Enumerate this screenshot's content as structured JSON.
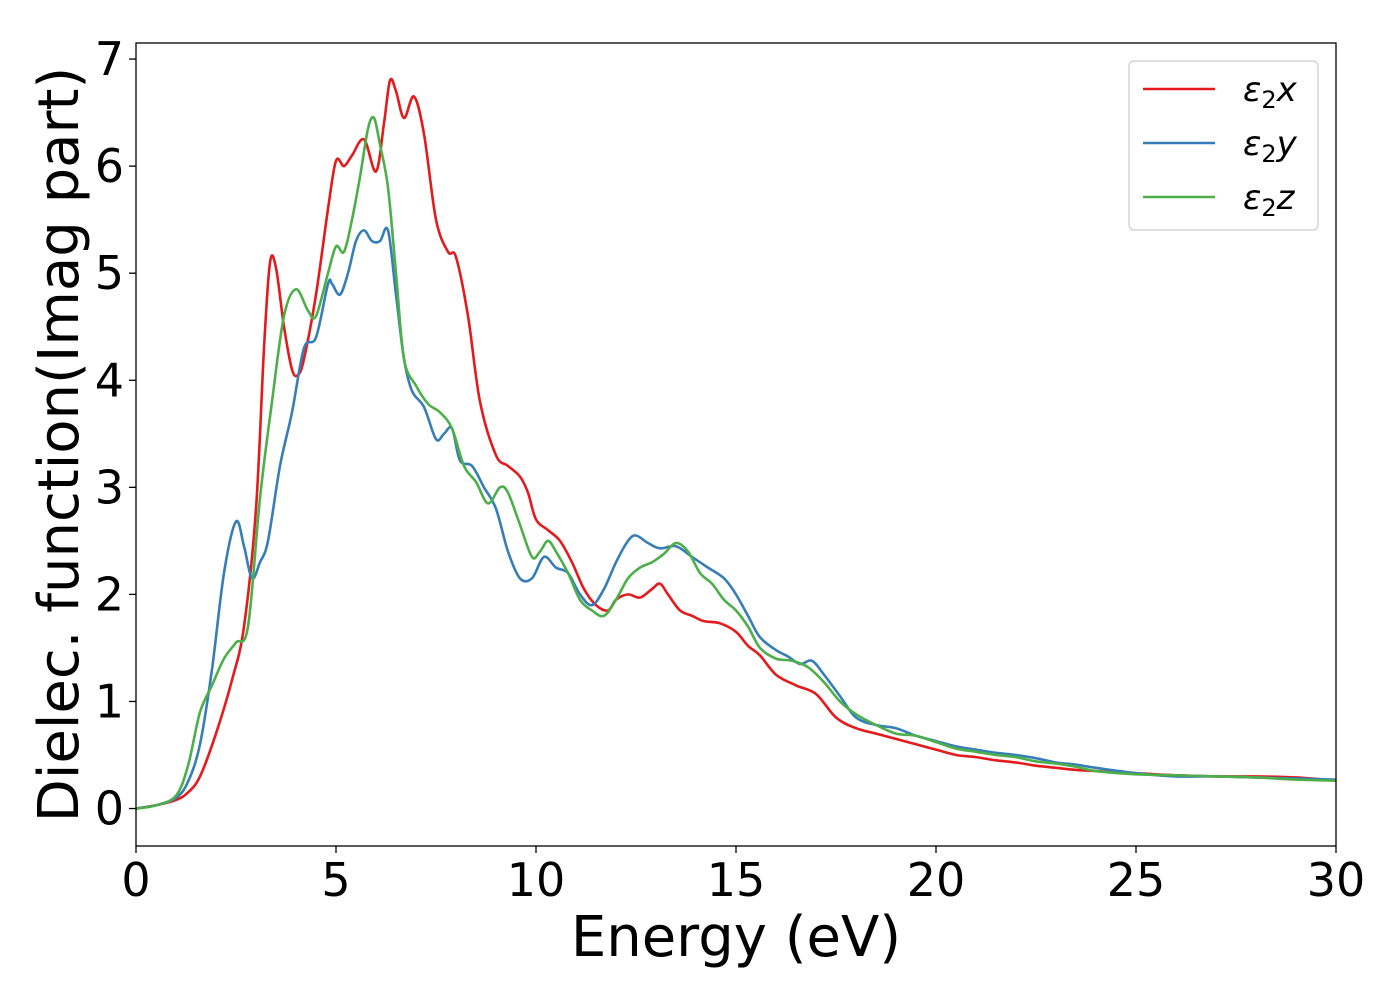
{
  "chart_data": {
    "type": "line",
    "xlabel": "Energy (eV)",
    "ylabel": "Dielec. function(Imag part)",
    "xlim": [
      0,
      30
    ],
    "ylim": [
      -0.35,
      7.15
    ],
    "xticks": [
      0,
      5,
      10,
      15,
      20,
      25,
      30
    ],
    "yticks": [
      0,
      1,
      2,
      3,
      4,
      5,
      6,
      7
    ],
    "grid": false,
    "legend_position": "top-right",
    "series": [
      {
        "name": "ε2x",
        "legend_base": "ε",
        "legend_sub": "2",
        "legend_suffix": "x",
        "color": "#e41a1c",
        "x": [
          0,
          0.5,
          1.0,
          1.3,
          1.6,
          2.0,
          2.4,
          2.7,
          3.0,
          3.2,
          3.35,
          3.5,
          3.7,
          3.9,
          4.05,
          4.2,
          4.5,
          4.8,
          5.0,
          5.2,
          5.4,
          5.7,
          6.0,
          6.2,
          6.35,
          6.5,
          6.7,
          6.95,
          7.2,
          7.5,
          7.8,
          8.0,
          8.3,
          8.6,
          9.0,
          9.3,
          9.6,
          9.8,
          10.0,
          10.3,
          10.6,
          10.9,
          11.2,
          11.5,
          11.8,
          12.0,
          12.3,
          12.6,
          12.9,
          13.1,
          13.3,
          13.6,
          13.9,
          14.2,
          14.6,
          15.0,
          15.3,
          15.6,
          16.0,
          16.5,
          17.0,
          17.5,
          18.0,
          18.5,
          19.0,
          19.5,
          20.0,
          20.5,
          21.0,
          21.5,
          22.0,
          22.5,
          23.0,
          23.5,
          24.0,
          25.0,
          26.0,
          27.0,
          28.0,
          29.0,
          30.0
        ],
        "y": [
          0,
          0.03,
          0.08,
          0.15,
          0.3,
          0.7,
          1.2,
          1.7,
          2.8,
          4.3,
          5.1,
          5.05,
          4.5,
          4.1,
          4.05,
          4.2,
          4.8,
          5.6,
          6.05,
          6.0,
          6.1,
          6.25,
          5.95,
          6.4,
          6.8,
          6.7,
          6.45,
          6.65,
          6.3,
          5.5,
          5.2,
          5.15,
          4.6,
          3.8,
          3.3,
          3.2,
          3.1,
          2.95,
          2.7,
          2.6,
          2.5,
          2.3,
          2.05,
          1.9,
          1.85,
          1.95,
          2.0,
          1.97,
          2.05,
          2.1,
          2.0,
          1.85,
          1.8,
          1.75,
          1.73,
          1.65,
          1.52,
          1.43,
          1.25,
          1.15,
          1.07,
          0.85,
          0.75,
          0.7,
          0.65,
          0.6,
          0.55,
          0.5,
          0.48,
          0.45,
          0.43,
          0.4,
          0.38,
          0.36,
          0.35,
          0.33,
          0.31,
          0.3,
          0.3,
          0.29,
          0.26
        ]
      },
      {
        "name": "ε2y",
        "legend_base": "ε",
        "legend_sub": "2",
        "legend_suffix": "y",
        "color": "#377eb8",
        "x": [
          0,
          0.5,
          1.0,
          1.3,
          1.6,
          1.9,
          2.2,
          2.5,
          2.7,
          2.9,
          3.1,
          3.3,
          3.6,
          3.9,
          4.2,
          4.5,
          4.8,
          4.9,
          5.1,
          5.3,
          5.5,
          5.7,
          5.9,
          6.1,
          6.3,
          6.5,
          6.7,
          6.9,
          7.2,
          7.5,
          7.7,
          7.9,
          8.1,
          8.4,
          8.7,
          9.0,
          9.3,
          9.6,
          9.9,
          10.2,
          10.5,
          10.8,
          11.1,
          11.4,
          11.7,
          12.0,
          12.3,
          12.5,
          12.8,
          13.1,
          13.5,
          13.9,
          14.3,
          14.7,
          15.0,
          15.3,
          15.6,
          16.0,
          16.3,
          16.6,
          16.9,
          17.2,
          17.6,
          18.0,
          18.5,
          19.0,
          19.5,
          20.0,
          20.5,
          21.0,
          21.5,
          22.0,
          22.5,
          23.0,
          23.5,
          24.0,
          25.0,
          26.0,
          27.0,
          28.0,
          29.0,
          30.0
        ],
        "y": [
          0,
          0.03,
          0.1,
          0.25,
          0.6,
          1.3,
          2.2,
          2.68,
          2.45,
          2.15,
          2.3,
          2.5,
          3.2,
          3.7,
          4.3,
          4.4,
          4.9,
          4.9,
          4.8,
          5.0,
          5.3,
          5.4,
          5.3,
          5.3,
          5.4,
          4.8,
          4.2,
          3.9,
          3.75,
          3.45,
          3.5,
          3.55,
          3.25,
          3.2,
          3.0,
          2.8,
          2.4,
          2.15,
          2.15,
          2.35,
          2.25,
          2.2,
          2.0,
          1.9,
          2.05,
          2.3,
          2.5,
          2.55,
          2.48,
          2.43,
          2.45,
          2.35,
          2.25,
          2.15,
          2.0,
          1.8,
          1.6,
          1.48,
          1.42,
          1.35,
          1.38,
          1.25,
          1.05,
          0.85,
          0.78,
          0.75,
          0.68,
          0.63,
          0.58,
          0.55,
          0.52,
          0.5,
          0.47,
          0.43,
          0.41,
          0.38,
          0.33,
          0.3,
          0.3,
          0.29,
          0.28,
          0.27
        ]
      },
      {
        "name": "ε2z",
        "legend_base": "ε",
        "legend_sub": "2",
        "legend_suffix": "z",
        "color": "#4daf4a",
        "x": [
          0,
          0.5,
          1.0,
          1.3,
          1.6,
          1.9,
          2.2,
          2.5,
          2.8,
          3.1,
          3.4,
          3.7,
          4.0,
          4.3,
          4.5,
          4.8,
          5.0,
          5.2,
          5.4,
          5.6,
          5.8,
          5.95,
          6.1,
          6.3,
          6.5,
          6.7,
          7.0,
          7.3,
          7.6,
          7.9,
          8.2,
          8.5,
          8.8,
          9.1,
          9.3,
          9.6,
          9.9,
          10.1,
          10.3,
          10.5,
          10.8,
          11.1,
          11.4,
          11.7,
          12.0,
          12.3,
          12.6,
          12.9,
          13.2,
          13.5,
          13.8,
          14.1,
          14.4,
          14.7,
          15.0,
          15.3,
          15.6,
          16.0,
          16.4,
          16.8,
          17.2,
          17.6,
          18.0,
          18.5,
          19.0,
          19.5,
          20.0,
          20.5,
          21.0,
          21.5,
          22.0,
          22.5,
          23.0,
          23.5,
          24.0,
          25.0,
          26.0,
          27.0,
          28.0,
          29.0,
          30.0
        ],
        "y": [
          0,
          0.03,
          0.12,
          0.4,
          0.9,
          1.15,
          1.4,
          1.55,
          1.7,
          2.9,
          3.8,
          4.6,
          4.85,
          4.65,
          4.6,
          5.0,
          5.25,
          5.2,
          5.5,
          5.9,
          6.35,
          6.45,
          6.2,
          5.8,
          5.0,
          4.2,
          3.95,
          3.78,
          3.7,
          3.55,
          3.2,
          3.05,
          2.85,
          3.0,
          2.95,
          2.65,
          2.35,
          2.4,
          2.5,
          2.4,
          2.2,
          1.95,
          1.85,
          1.8,
          1.95,
          2.15,
          2.25,
          2.3,
          2.38,
          2.48,
          2.4,
          2.2,
          2.1,
          1.95,
          1.85,
          1.7,
          1.5,
          1.4,
          1.38,
          1.32,
          1.18,
          1.0,
          0.88,
          0.78,
          0.7,
          0.68,
          0.62,
          0.56,
          0.53,
          0.5,
          0.48,
          0.44,
          0.42,
          0.39,
          0.35,
          0.32,
          0.31,
          0.3,
          0.29,
          0.27,
          0.26
        ]
      }
    ]
  }
}
